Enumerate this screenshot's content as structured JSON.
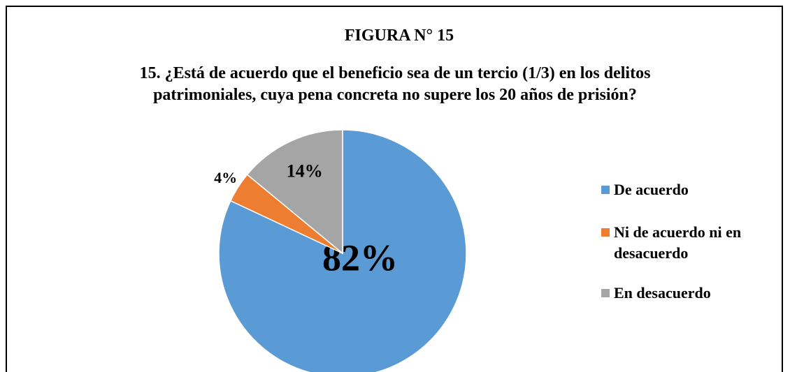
{
  "chart_data": {
    "type": "pie",
    "title": "FIGURA N° 15",
    "subtitle": "15. ¿Está de acuerdo que el beneficio sea de un tercio (1/3) en los delitos patrimoniales, cuya pena concreta no supere los 20 años de prisión?",
    "categories": [
      "De acuerdo",
      "Ni de acuerdo ni en desacuerdo",
      "En desacuerdo"
    ],
    "values": [
      82,
      4,
      14
    ],
    "value_labels": [
      "82%",
      "4%",
      "14%"
    ],
    "colors": [
      "#5b9bd5",
      "#ed7d31",
      "#a5a5a5"
    ],
    "legend": "right"
  }
}
